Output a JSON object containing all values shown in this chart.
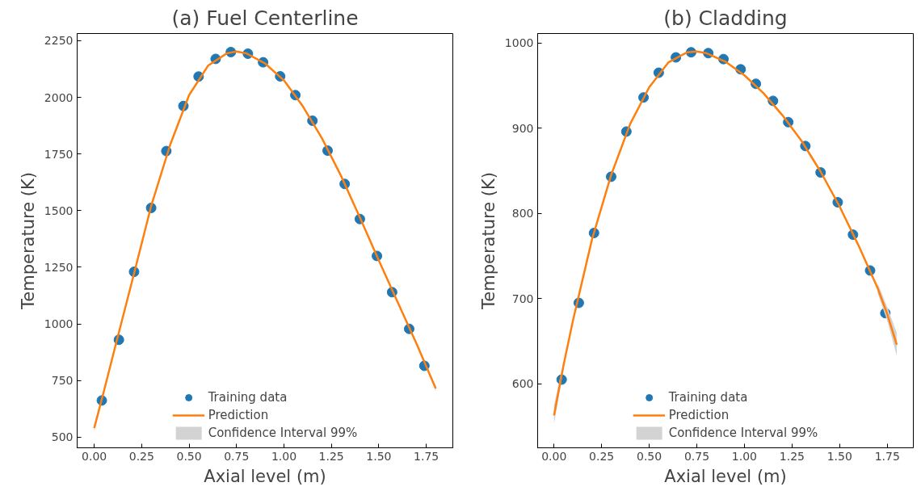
{
  "chart_data": [
    {
      "type": "scatter",
      "title": "(a) Fuel Centerline",
      "xlabel": "Axial level (m)",
      "ylabel": "Temperature (K)",
      "xlim": [
        -0.09,
        1.89
      ],
      "xticks": [
        {
          "value": 0,
          "label": "0.00"
        },
        {
          "value": 0.25,
          "label": "0.25"
        },
        {
          "value": 0.5,
          "label": "0.50"
        },
        {
          "value": 0.75,
          "label": "0.75"
        },
        {
          "value": 1,
          "label": "1.00"
        },
        {
          "value": 1.25,
          "label": "1.25"
        },
        {
          "value": 1.5,
          "label": "1.50"
        },
        {
          "value": 1.75,
          "label": "1.75"
        }
      ],
      "ylim": [
        453,
        2282
      ],
      "yticks": [
        500,
        750,
        1000,
        1250,
        1500,
        1750,
        2000,
        2250
      ],
      "grid": false,
      "legend": "bottom",
      "series": [
        {
          "type": "area",
          "name": "Confidence Interval 99%",
          "color": "#d3d3d3"
        },
        {
          "name": "Training data",
          "color": "#1f77b4",
          "marker": "circle",
          "x": [
            0.04,
            0.13,
            0.21,
            0.3,
            0.38,
            0.47,
            0.55,
            0.64,
            0.72,
            0.81,
            0.89,
            0.98,
            1.06,
            1.15,
            1.23,
            1.32,
            1.4,
            1.49,
            1.57,
            1.66,
            1.74
          ],
          "values": [
            662,
            930,
            1230,
            1512,
            1763,
            1962,
            2092,
            2170,
            2200,
            2193,
            2155,
            2093,
            2010,
            1897,
            1765,
            1618,
            1463,
            1300,
            1140,
            978,
            815
          ]
        },
        {
          "type": "line",
          "name": "Prediction",
          "color": "#ff7f0e",
          "x": [
            0,
            0.05,
            0.1,
            0.2,
            0.3,
            0.4,
            0.5,
            0.6,
            0.7,
            0.75,
            0.8,
            0.9,
            1.0,
            1.1,
            1.2,
            1.3,
            1.4,
            1.5,
            1.6,
            1.7,
            1.75,
            1.8
          ],
          "values": [
            540,
            700,
            865,
            1190,
            1520,
            1790,
            2010,
            2140,
            2195,
            2203,
            2195,
            2150,
            2075,
            1960,
            1820,
            1655,
            1470,
            1280,
            1095,
            910,
            812,
            715
          ],
          "lower": [
            528,
            695,
            null,
            null,
            null,
            null,
            null,
            null,
            null,
            null,
            null,
            null,
            null,
            null,
            null,
            null,
            null,
            null,
            null,
            null,
            807,
            703
          ],
          "upper": [
            552,
            705,
            null,
            null,
            null,
            null,
            null,
            null,
            null,
            null,
            null,
            null,
            null,
            null,
            null,
            null,
            null,
            null,
            null,
            null,
            817,
            727
          ]
        }
      ]
    },
    {
      "type": "scatter",
      "title": "(b) Cladding",
      "xlabel": "Axial level (m)",
      "ylabel": "Temperature (K)",
      "xlim": [
        -0.086,
        1.887
      ],
      "xticks": [
        {
          "value": 0,
          "label": "0.00"
        },
        {
          "value": 0.25,
          "label": "0.25"
        },
        {
          "value": 0.5,
          "label": "0.50"
        },
        {
          "value": 0.75,
          "label": "0.75"
        },
        {
          "value": 1,
          "label": "1.00"
        },
        {
          "value": 1.25,
          "label": "1.25"
        },
        {
          "value": 1.5,
          "label": "1.50"
        },
        {
          "value": 1.75,
          "label": "1.75"
        }
      ],
      "ylim": [
        525,
        1011
      ],
      "yticks": [
        600,
        700,
        800,
        900,
        1000
      ],
      "grid": false,
      "legend": "bottom",
      "series": [
        {
          "type": "area",
          "name": "Confidence Interval 99%",
          "color": "#d3d3d3"
        },
        {
          "name": "Training data",
          "color": "#1f77b4",
          "marker": "circle",
          "x": [
            0.04,
            0.13,
            0.21,
            0.3,
            0.38,
            0.47,
            0.55,
            0.64,
            0.72,
            0.81,
            0.89,
            0.98,
            1.06,
            1.15,
            1.23,
            1.32,
            1.4,
            1.49,
            1.57,
            1.66,
            1.74
          ],
          "values": [
            605,
            695,
            777,
            843,
            896,
            936,
            965,
            983,
            989,
            988,
            981,
            969,
            952,
            932,
            907,
            879,
            848,
            813,
            775,
            733,
            683
          ]
        },
        {
          "type": "line",
          "name": "Prediction",
          "color": "#ff7f0e",
          "x": [
            0,
            0.05,
            0.1,
            0.2,
            0.3,
            0.4,
            0.5,
            0.6,
            0.7,
            0.75,
            0.8,
            0.9,
            1.0,
            1.1,
            1.2,
            1.3,
            1.4,
            1.5,
            1.6,
            1.7,
            1.75,
            1.8
          ],
          "values": [
            563,
            622,
            675,
            770,
            845,
            905,
            948,
            977,
            989,
            990,
            988,
            978,
            962,
            941,
            915,
            885,
            849,
            808,
            762,
            712,
            682,
            646
          ],
          "lower": [
            553,
            618,
            null,
            null,
            null,
            null,
            null,
            null,
            null,
            null,
            null,
            null,
            null,
            null,
            null,
            null,
            null,
            null,
            null,
            706,
            674,
            633
          ],
          "upper": [
            575,
            626,
            null,
            null,
            null,
            null,
            null,
            null,
            null,
            null,
            null,
            null,
            null,
            null,
            null,
            null,
            null,
            null,
            null,
            718,
            690,
            660
          ]
        }
      ]
    }
  ]
}
